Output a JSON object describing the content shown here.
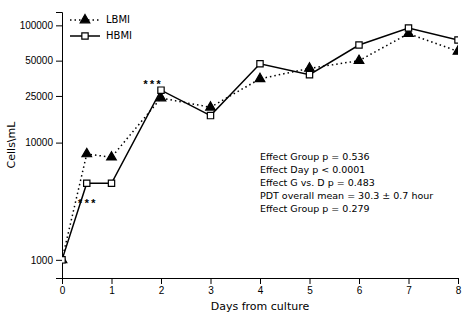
{
  "chart_data": {
    "type": "line",
    "x_label": "Days from culture",
    "y_label": "Cells\\mL",
    "x": [
      0,
      0.5,
      1,
      2,
      3,
      4,
      5,
      6,
      7,
      8
    ],
    "series": [
      {
        "name": "LBMI",
        "color": "#000000",
        "marker": "triangle",
        "line_style": "dotted",
        "values": [
          1000,
          8000,
          7500,
          24000,
          20000,
          35000,
          43000,
          50000,
          85000,
          60000
        ]
      },
      {
        "name": "HBMI",
        "color": "#000000",
        "marker": "square-open",
        "line_style": "solid",
        "values": [
          1000,
          4500,
          4500,
          28000,
          17000,
          47000,
          38000,
          68000,
          95000,
          75000
        ]
      }
    ],
    "xlim": [
      0,
      8
    ],
    "xticks": [
      0,
      1,
      2,
      3,
      4,
      5,
      6,
      7,
      8
    ],
    "ylim": [
      700,
      130000
    ],
    "yticks": [
      1000,
      10000,
      25000,
      50000,
      100000
    ],
    "log": "y",
    "grid": false,
    "legend": "upper left",
    "annotations": [
      {
        "text": "***",
        "x": 0.5,
        "y": 2800
      },
      {
        "text": "***",
        "x": 1.82,
        "y": 29500
      },
      {
        "text": "Effect Group p = 0.536"
      },
      {
        "text": "Effect Day p < 0.0001"
      },
      {
        "text": "Effect G vs. D p = 0.483"
      },
      {
        "text": "PDT overall mean = 30.3 ± 0.7 hour"
      },
      {
        "text": "Effect Group p = 0.279"
      }
    ]
  }
}
